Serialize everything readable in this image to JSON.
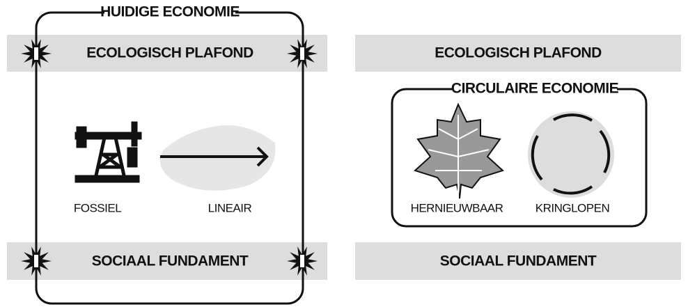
{
  "left": {
    "title": "HUIDIGE ECONOMIE",
    "ceiling": "ECOLOGISCH PLAFOND",
    "foundation": "SOCIAAL FUNDAMENT",
    "items": [
      {
        "label": "FOSSIEL"
      },
      {
        "label": "LINEAIR"
      }
    ]
  },
  "right": {
    "ceiling": "ECOLOGISCH PLAFOND",
    "title": "CIRCULAIRE ECONOMIE",
    "foundation": "SOCIAAL FUNDAMENT",
    "items": [
      {
        "label": "HERNIEUWBAAR"
      },
      {
        "label": "KRINGLOPEN"
      }
    ]
  }
}
